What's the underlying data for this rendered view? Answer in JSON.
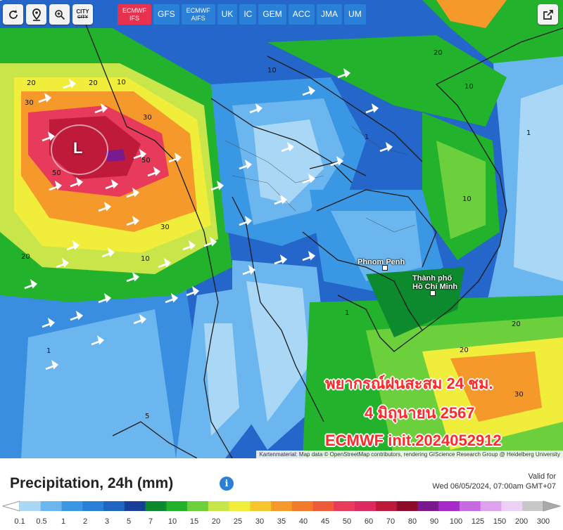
{
  "toolbar": {
    "buttons": [
      "refresh-icon",
      "location-pin-icon",
      "zoom-icon"
    ],
    "city_label_top": "CITY",
    "city_label_bottom": "CITY",
    "models": [
      {
        "label": "ECMWF IFS",
        "active": true
      },
      {
        "label": "GFS",
        "active": false
      },
      {
        "label": "ECMWF AIFS",
        "active": false
      },
      {
        "label": "UK",
        "active": false
      },
      {
        "label": "IC",
        "active": false
      },
      {
        "label": "GEM",
        "active": false
      },
      {
        "label": "ACC",
        "active": false
      },
      {
        "label": "JMA",
        "active": false
      },
      {
        "label": "UM",
        "active": false
      }
    ],
    "share_icon": "share-icon"
  },
  "map": {
    "low_marker": "L",
    "cities": [
      {
        "name": "Phnom Penh"
      },
      {
        "name": "Thành phố\nHồ Chí Minh"
      }
    ],
    "isolines": [
      "20",
      "30",
      "30",
      "20",
      "10",
      "50",
      "50",
      "30",
      "20",
      "10",
      "1",
      "1",
      "10",
      "20",
      "10",
      "1",
      "20",
      "30",
      "20",
      "10",
      "1",
      "5"
    ],
    "overlay_line1": "พยากรณ์ฝนสะสม 24 ชม.",
    "overlay_line2": "4 มิถุนายน 2567",
    "overlay_line3": "ECMWF init.2024052912",
    "attribution": "Kartenmaterial: Map data © OpenStreetMap contributors, rendering GIScience Research Group @ Heidelberg University"
  },
  "footer": {
    "title": "Precipitation, 24h (mm)",
    "info_icon": "i",
    "valid_label": "Valid for",
    "valid_date": "Wed 06/05/2024, 07:00am GMT+07",
    "scale": [
      {
        "v": "0.1",
        "c": "#a9d7f5"
      },
      {
        "v": "0.5",
        "c": "#6cb6ef"
      },
      {
        "v": "1",
        "c": "#3a97e4"
      },
      {
        "v": "2",
        "c": "#2a7fd6"
      },
      {
        "v": "3",
        "c": "#1f66c2"
      },
      {
        "v": "5",
        "c": "#173f9a"
      },
      {
        "v": "7",
        "c": "#0e8a2e"
      },
      {
        "v": "10",
        "c": "#22b22c"
      },
      {
        "v": "15",
        "c": "#6cd03c"
      },
      {
        "v": "20",
        "c": "#c8e64a"
      },
      {
        "v": "25",
        "c": "#f0ee3a"
      },
      {
        "v": "30",
        "c": "#f6c62f"
      },
      {
        "v": "35",
        "c": "#f59a2a"
      },
      {
        "v": "40",
        "c": "#f27a2b"
      },
      {
        "v": "45",
        "c": "#ef5a3a"
      },
      {
        "v": "50",
        "c": "#e83a5a"
      },
      {
        "v": "60",
        "c": "#de2b5f"
      },
      {
        "v": "70",
        "c": "#c01a3a"
      },
      {
        "v": "80",
        "c": "#8e0b2a"
      },
      {
        "v": "90",
        "c": "#7a1a8e"
      },
      {
        "v": "100",
        "c": "#a62bc9"
      },
      {
        "v": "125",
        "c": "#c86be0"
      },
      {
        "v": "150",
        "c": "#dea2ee"
      },
      {
        "v": "200",
        "c": "#ecd0f5"
      },
      {
        "v": "300",
        "c": "#c8c8c8"
      }
    ]
  }
}
